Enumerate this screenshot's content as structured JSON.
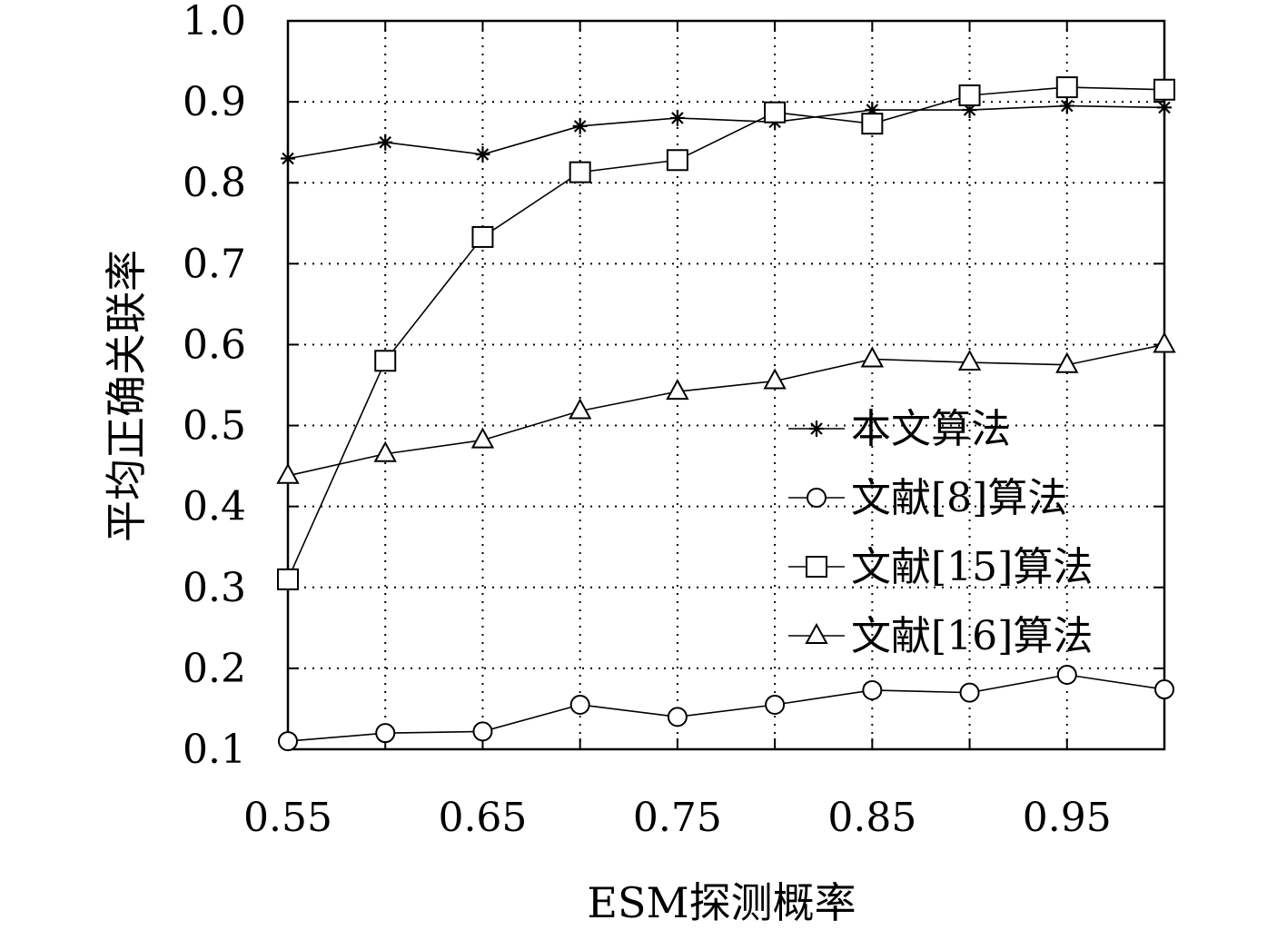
{
  "chart_data": {
    "type": "line",
    "xlabel": "ESM探测概率",
    "ylabel": "平均正确关联率",
    "xlim": [
      0.55,
      1.0
    ],
    "ylim": [
      0.1,
      1.0
    ],
    "xticks": [
      0.55,
      0.65,
      0.75,
      0.85,
      0.95
    ],
    "xtick_labels": [
      "0.55",
      "0.65",
      "0.75",
      "0.85",
      "0.95"
    ],
    "yticks": [
      0.1,
      0.2,
      0.3,
      0.4,
      0.5,
      0.6,
      0.7,
      0.8,
      0.9,
      1.0
    ],
    "ytick_labels": [
      "0.1",
      "0.2",
      "0.3",
      "0.4",
      "0.5",
      "0.6",
      "0.7",
      "0.8",
      "0.9",
      "1.0"
    ],
    "grid": true,
    "legend_position": "center-right",
    "x": [
      0.55,
      0.6,
      0.65,
      0.7,
      0.75,
      0.8,
      0.85,
      0.9,
      0.95,
      1.0
    ],
    "series": [
      {
        "name": "本文算法",
        "marker": "star",
        "values": [
          0.83,
          0.85,
          0.835,
          0.87,
          0.88,
          0.875,
          0.89,
          0.89,
          0.895,
          0.893
        ]
      },
      {
        "name": "文献[8]算法",
        "marker": "circle",
        "values": [
          0.11,
          0.12,
          0.122,
          0.155,
          0.14,
          0.155,
          0.173,
          0.17,
          0.192,
          0.174
        ]
      },
      {
        "name": "文献[15]算法",
        "marker": "square",
        "values": [
          0.31,
          0.58,
          0.733,
          0.813,
          0.828,
          0.887,
          0.873,
          0.908,
          0.918,
          0.915
        ]
      },
      {
        "name": "文献[16]算法",
        "marker": "triangle",
        "values": [
          0.438,
          0.465,
          0.482,
          0.518,
          0.542,
          0.555,
          0.582,
          0.578,
          0.575,
          0.6
        ]
      }
    ]
  }
}
